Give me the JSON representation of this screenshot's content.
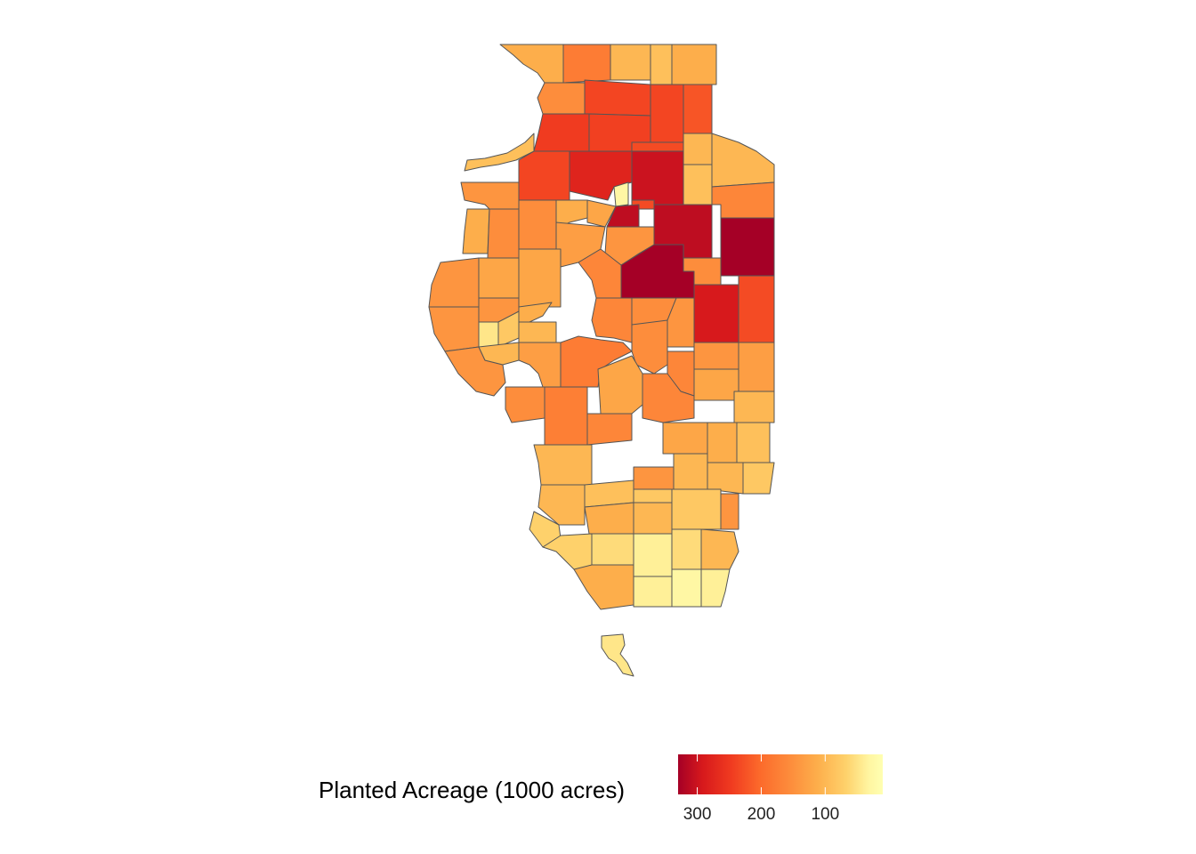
{
  "legend": {
    "title": "Planted Acreage (1000 acres)",
    "ticks": [
      300,
      200,
      100
    ],
    "range": [
      330,
      10
    ],
    "colors": [
      "#a50026",
      "#d7191c",
      "#f03b20",
      "#fc6a2b",
      "#fd8d3c",
      "#fdae4b",
      "#fed16b",
      "#fff5a0",
      "#ffffb2"
    ]
  },
  "counties": [
    {
      "v": 110
    },
    {
      "v": 175
    },
    {
      "v": 100
    },
    {
      "v": 90
    },
    {
      "v": 110
    },
    {
      "v": 150
    },
    {
      "v": 235
    },
    {
      "v": 235
    },
    {
      "v": 220
    },
    {
      "v": 245
    },
    {
      "v": 240
    },
    {
      "v": 230
    },
    {
      "v": 100
    },
    {
      "v": 100
    },
    {
      "v": 235
    },
    {
      "v": 275
    },
    {
      "v": 300
    },
    {
      "v": 90
    },
    {
      "v": 90
    },
    {
      "v": 140
    },
    {
      "v": 150
    },
    {
      "v": 30
    },
    {
      "v": 310
    },
    {
      "v": 160
    },
    {
      "v": 110
    },
    {
      "v": 150
    },
    {
      "v": 110
    },
    {
      "v": 120
    },
    {
      "v": 310
    },
    {
      "v": 330
    },
    {
      "v": 130
    },
    {
      "v": 140
    },
    {
      "v": 120
    },
    {
      "v": 120
    },
    {
      "v": 140
    },
    {
      "v": 330
    },
    {
      "v": 150
    },
    {
      "v": 160
    },
    {
      "v": 140
    },
    {
      "v": 110
    },
    {
      "v": 150
    },
    {
      "v": 290
    },
    {
      "v": 230
    },
    {
      "v": 140
    },
    {
      "v": 50
    },
    {
      "v": 80
    },
    {
      "v": 160
    },
    {
      "v": 140
    },
    {
      "v": 100
    },
    {
      "v": 140
    },
    {
      "v": 100
    },
    {
      "v": 175
    },
    {
      "v": 150
    },
    {
      "v": 140
    },
    {
      "v": 130
    },
    {
      "v": 130
    },
    {
      "v": 160
    },
    {
      "v": 120
    },
    {
      "v": 160
    },
    {
      "v": 170
    },
    {
      "v": 150
    },
    {
      "v": 120
    },
    {
      "v": 100
    },
    {
      "v": 160
    },
    {
      "v": 120
    },
    {
      "v": 110
    },
    {
      "v": 90
    },
    {
      "v": 100
    },
    {
      "v": 100
    },
    {
      "v": 140
    },
    {
      "v": 100
    },
    {
      "v": 80
    },
    {
      "v": 100
    },
    {
      "v": 90
    },
    {
      "v": 110
    },
    {
      "v": 100
    },
    {
      "v": 80
    },
    {
      "v": 80
    },
    {
      "v": 140
    },
    {
      "v": 70
    },
    {
      "v": 70
    },
    {
      "v": 60
    },
    {
      "v": 60
    },
    {
      "v": 100
    },
    {
      "v": 110
    },
    {
      "v": 40
    },
    {
      "v": 30
    },
    {
      "v": 40
    },
    {
      "v": 40
    },
    {
      "v": 50
    },
    {
      "v": 20
    }
  ]
}
